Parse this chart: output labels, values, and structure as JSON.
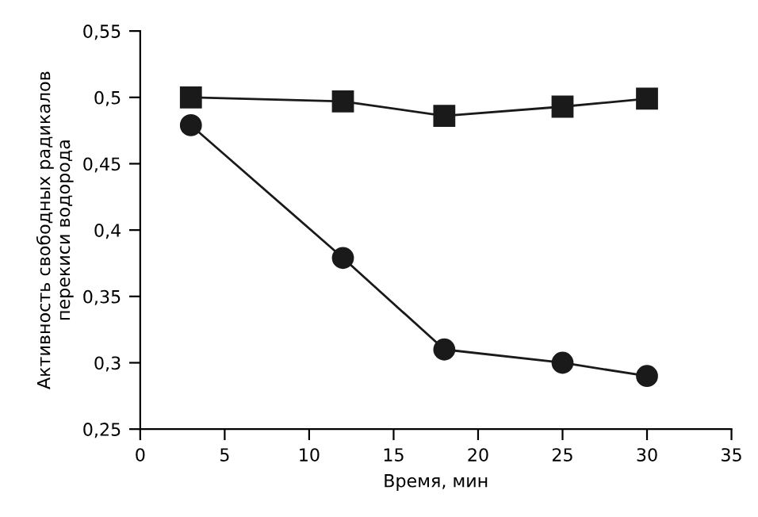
{
  "chart_data": {
    "type": "line",
    "xlabel": "Время, мин",
    "ylabel": "Активность свободных радикалов\nперекиси водорода",
    "x": [
      3,
      12,
      18,
      25,
      30
    ],
    "series": [
      {
        "color": "#1a1a1a",
        "marker": "square",
        "values": [
          0.5,
          0.497,
          0.486,
          0.493,
          0.499
        ]
      },
      {
        "color": "#1a1a1a",
        "marker": "circle",
        "values": [
          0.479,
          0.379,
          0.31,
          0.3,
          0.29
        ]
      }
    ],
    "xlim": [
      0,
      35
    ],
    "xticks": [
      0,
      5,
      10,
      15,
      20,
      25,
      30,
      35
    ],
    "ylim": [
      0.25,
      0.55
    ],
    "yticks": [
      {
        "value": 0.25,
        "label": "0,25"
      },
      {
        "value": 0.3,
        "label": "0,3"
      },
      {
        "value": 0.35,
        "label": "0,35"
      },
      {
        "value": 0.4,
        "label": "0,4"
      },
      {
        "value": 0.45,
        "label": "0,45"
      },
      {
        "value": 0.5,
        "label": "0,5"
      },
      {
        "value": 0.55,
        "label": "0,55"
      }
    ],
    "grid": false,
    "legend": false,
    "line_style": "solid"
  }
}
